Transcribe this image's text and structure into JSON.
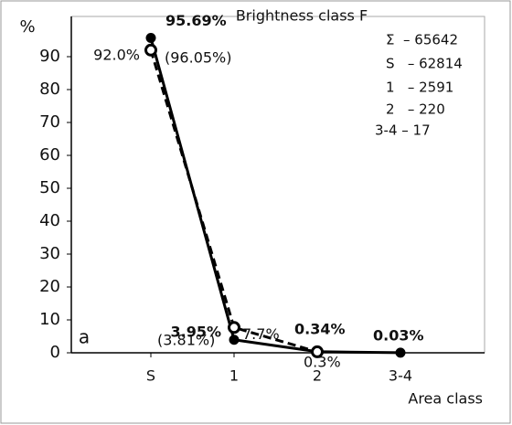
{
  "chart_data": {
    "type": "line",
    "title": "Brightness class F",
    "y_label": "%",
    "x_label": "Area class",
    "panel_label": "a",
    "categories": [
      "S",
      "1",
      "2",
      "3-4"
    ],
    "series": [
      {
        "color": "#000000",
        "line_style": "solid",
        "marker": "filled",
        "values": [
          95.69,
          3.95,
          0.34,
          0.03
        ],
        "value_labels": [
          "95.69%",
          "3.95%",
          "0.34%",
          "0.03%"
        ]
      },
      {
        "color": "#000000",
        "line_style": "dashed",
        "marker": "open",
        "values": [
          92.0,
          7.7,
          0.3,
          null
        ],
        "value_labels": [
          "92.0%",
          "7.7%",
          "0.3%",
          null
        ]
      }
    ],
    "annotations": [
      "(96.05%)",
      "(3.81%)"
    ],
    "stats": [
      "Σ  – 65642",
      "S   – 62814",
      "1   – 2591",
      "2   – 220",
      "3-4 – 17"
    ],
    "ylim": [
      0,
      100
    ],
    "yticks": [
      0,
      10,
      20,
      30,
      40,
      50,
      60,
      70,
      80,
      90
    ],
    "grid": false
  }
}
